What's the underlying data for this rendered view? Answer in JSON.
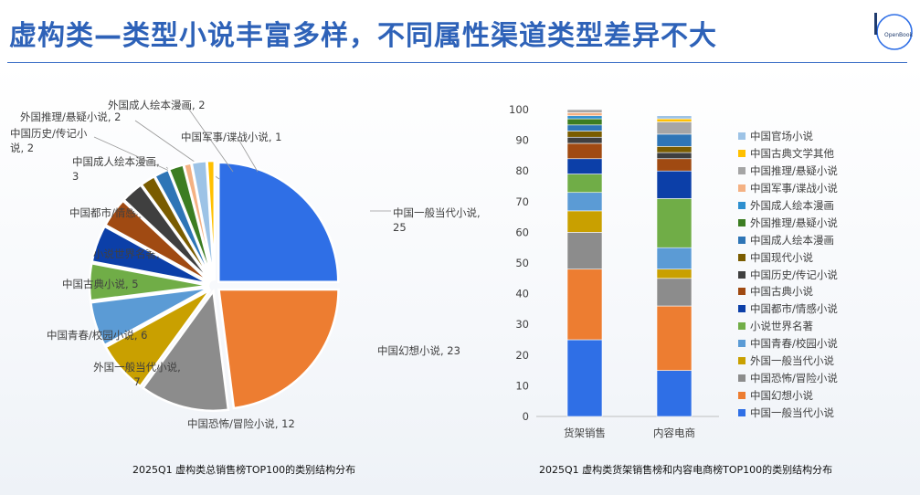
{
  "title": "虚构类—类型小说丰富多样，不同属性渠道类型差异不大",
  "logo_text": "OpenBook",
  "pie_caption": "2025Q1  虚构类总销售榜TOP100的类别结构分布",
  "bar_caption": "2025Q1  虚构类货架销售榜和内容电商榜TOP100的类别结构分布",
  "chart_data": [
    {
      "type": "pie",
      "title": "2025Q1  虚构类总销售榜TOP100的类别结构分布",
      "slices": [
        {
          "name": "中国一般当代小说",
          "value": 25,
          "color": "#2f6fe6",
          "label": [
            "中国一般当代小说,",
            "25"
          ]
        },
        {
          "name": "中国幻想小说",
          "value": 23,
          "color": "#ed7d31",
          "label": [
            "中国幻想小说, 23"
          ]
        },
        {
          "name": "中国恐怖/冒险小说",
          "value": 12,
          "color": "#8c8c8c",
          "label": [
            "中国恐怖/冒险小说, 12"
          ]
        },
        {
          "name": "外国一般当代小说",
          "value": 7,
          "color": "#c9a000",
          "label": [
            "外国一般当代小说,",
            "7"
          ]
        },
        {
          "name": "中国青春/校园小说",
          "value": 6,
          "color": "#5b9bd5",
          "label": [
            "中国青春/校园小说, 6"
          ]
        },
        {
          "name": "中国古典小说",
          "value": 5,
          "color": "#70ad47",
          "label": [
            "中国古典小说, 5"
          ]
        },
        {
          "name": "小说世界名著",
          "value": 5,
          "color": "#0c3fa8",
          "label": [
            "小说世界名著, 5"
          ]
        },
        {
          "name": "中国都市/情感小说",
          "value": 4,
          "color": "#a04a12",
          "label": [
            "中国都市/情感小说,"
          ]
        },
        {
          "name": "中国成人绘本漫画",
          "value": 3,
          "color": "#3f3f3f",
          "label": [
            "中国成人绘本漫画,",
            "3"
          ]
        },
        {
          "name": "中国现代小说",
          "value": 2,
          "color": "#7a5c00",
          "label": []
        },
        {
          "name": "中国历史/传记小说",
          "value": 2,
          "color": "#2e75b6",
          "label": [
            "中国历史/传记小",
            "说, 2"
          ]
        },
        {
          "name": "外国推理/悬疑小说",
          "value": 2,
          "color": "#3c7d22",
          "label": [
            "外国推理/悬疑小说, 2"
          ]
        },
        {
          "name": "中国推理/悬疑小说",
          "value": 1,
          "color": "#f4b183",
          "label": []
        },
        {
          "name": "外国成人绘本漫画",
          "value": 2,
          "color": "#9dc3e6",
          "label": [
            "外国成人绘本漫画, 2"
          ]
        },
        {
          "name": "中国军事/谍战小说",
          "value": 1,
          "color": "#ffc000",
          "label": [
            "中国军事/谍战小说, 1"
          ]
        }
      ]
    },
    {
      "type": "bar",
      "stacked": true,
      "title": "2025Q1  虚构类货架销售榜和内容电商榜TOP100的类别结构分布",
      "categories": [
        "货架销售",
        "内容电商"
      ],
      "ylim": [
        0,
        100
      ],
      "yticks": [
        0,
        10,
        20,
        30,
        40,
        50,
        60,
        70,
        80,
        90,
        100
      ],
      "series": [
        {
          "name": "中国一般当代小说",
          "color": "#2f6fe6",
          "values": [
            25,
            15
          ]
        },
        {
          "name": "中国幻想小说",
          "color": "#ed7d31",
          "values": [
            23,
            21
          ]
        },
        {
          "name": "中国恐怖/冒险小说",
          "color": "#8c8c8c",
          "values": [
            12,
            9
          ]
        },
        {
          "name": "外国一般当代小说",
          "color": "#c9a000",
          "values": [
            7,
            3
          ]
        },
        {
          "name": "中国青春/校园小说",
          "color": "#5b9bd5",
          "values": [
            6,
            7
          ]
        },
        {
          "name": "小说世界名著",
          "color": "#70ad47",
          "values": [
            6,
            16
          ]
        },
        {
          "name": "中国都市/情感小说",
          "color": "#0c3fa8",
          "values": [
            5,
            9
          ]
        },
        {
          "name": "中国古典小说",
          "color": "#a04a12",
          "values": [
            5,
            4
          ]
        },
        {
          "name": "中国历史/传记小说",
          "color": "#3f3f3f",
          "values": [
            2,
            2
          ]
        },
        {
          "name": "中国现代小说",
          "color": "#7a5c00",
          "values": [
            2,
            2
          ]
        },
        {
          "name": "中国成人绘本漫画",
          "color": "#2e75b6",
          "values": [
            2,
            4
          ]
        },
        {
          "name": "外国推理/悬疑小说",
          "color": "#3c7d22",
          "values": [
            2,
            0
          ]
        },
        {
          "name": "外国成人绘本漫画",
          "color": "#2e8fcf",
          "values": [
            1,
            0
          ]
        },
        {
          "name": "中国军事/谍战小说",
          "color": "#f4b183",
          "values": [
            1,
            0
          ]
        },
        {
          "name": "中国推理/悬疑小说",
          "color": "#a5a5a5",
          "values": [
            1,
            4
          ]
        },
        {
          "name": "中国古典文学其他",
          "color": "#ffc000",
          "values": [
            0,
            1
          ]
        },
        {
          "name": "中国官场小说",
          "color": "#9dc3e6",
          "values": [
            0,
            1
          ]
        }
      ]
    }
  ]
}
